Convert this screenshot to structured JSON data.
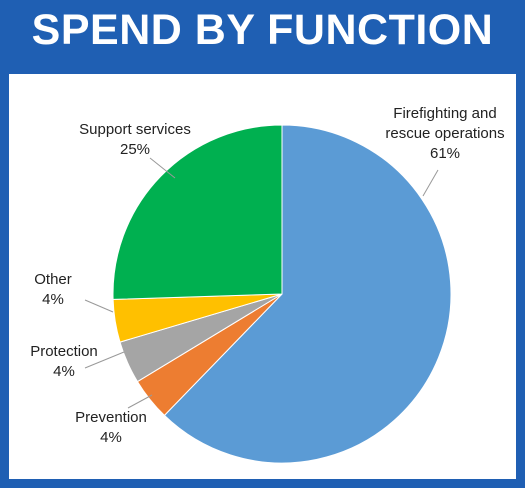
{
  "chart_data": {
    "type": "pie",
    "title": "SPEND BY FUNCTION",
    "categories": [
      "Firefighting and rescue operations",
      "Prevention",
      "Protection",
      "Other",
      "Support services"
    ],
    "values": [
      61,
      4,
      4,
      4,
      25
    ],
    "value_labels": [
      "61%",
      "4%",
      "4%",
      "4%",
      "25%"
    ],
    "colors": [
      "#5b9bd5",
      "#ed7d31",
      "#a5a5a5",
      "#ffc000",
      "#00b050"
    ]
  }
}
